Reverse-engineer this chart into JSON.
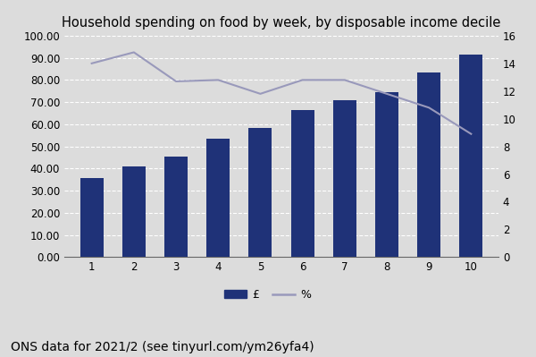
{
  "title": "Household spending on food by week, by disposable income decile",
  "categories": [
    1,
    2,
    3,
    4,
    5,
    6,
    7,
    8,
    9,
    10
  ],
  "bar_values": [
    35.5,
    41.0,
    45.5,
    53.5,
    58.5,
    66.5,
    71.0,
    74.5,
    83.5,
    91.5
  ],
  "line_values": [
    14.0,
    14.8,
    12.7,
    12.8,
    11.8,
    12.8,
    12.8,
    11.8,
    10.8,
    8.9
  ],
  "bar_color": "#1F3278",
  "line_color": "#9999BB",
  "background_color": "#DCDCDC",
  "left_ylim": [
    0,
    100
  ],
  "left_yticks": [
    0,
    10,
    20,
    30,
    40,
    50,
    60,
    70,
    80,
    90,
    100
  ],
  "left_yticklabels": [
    "0.00",
    "10.00",
    "20.00",
    "30.00",
    "40.00",
    "50.00",
    "60.00",
    "70.00",
    "80.00",
    "90.00",
    "100.00"
  ],
  "right_ylim": [
    0,
    16
  ],
  "right_yticks": [
    0,
    2,
    4,
    6,
    8,
    10,
    12,
    14,
    16
  ],
  "legend_labels": [
    "£",
    "%"
  ],
  "caption": "ONS data for 2021/2 (see tinyurl.com/ym26yfa4)",
  "title_fontsize": 10.5,
  "caption_fontsize": 10,
  "tick_fontsize": 8.5,
  "legend_fontsize": 9,
  "bar_width": 0.55
}
